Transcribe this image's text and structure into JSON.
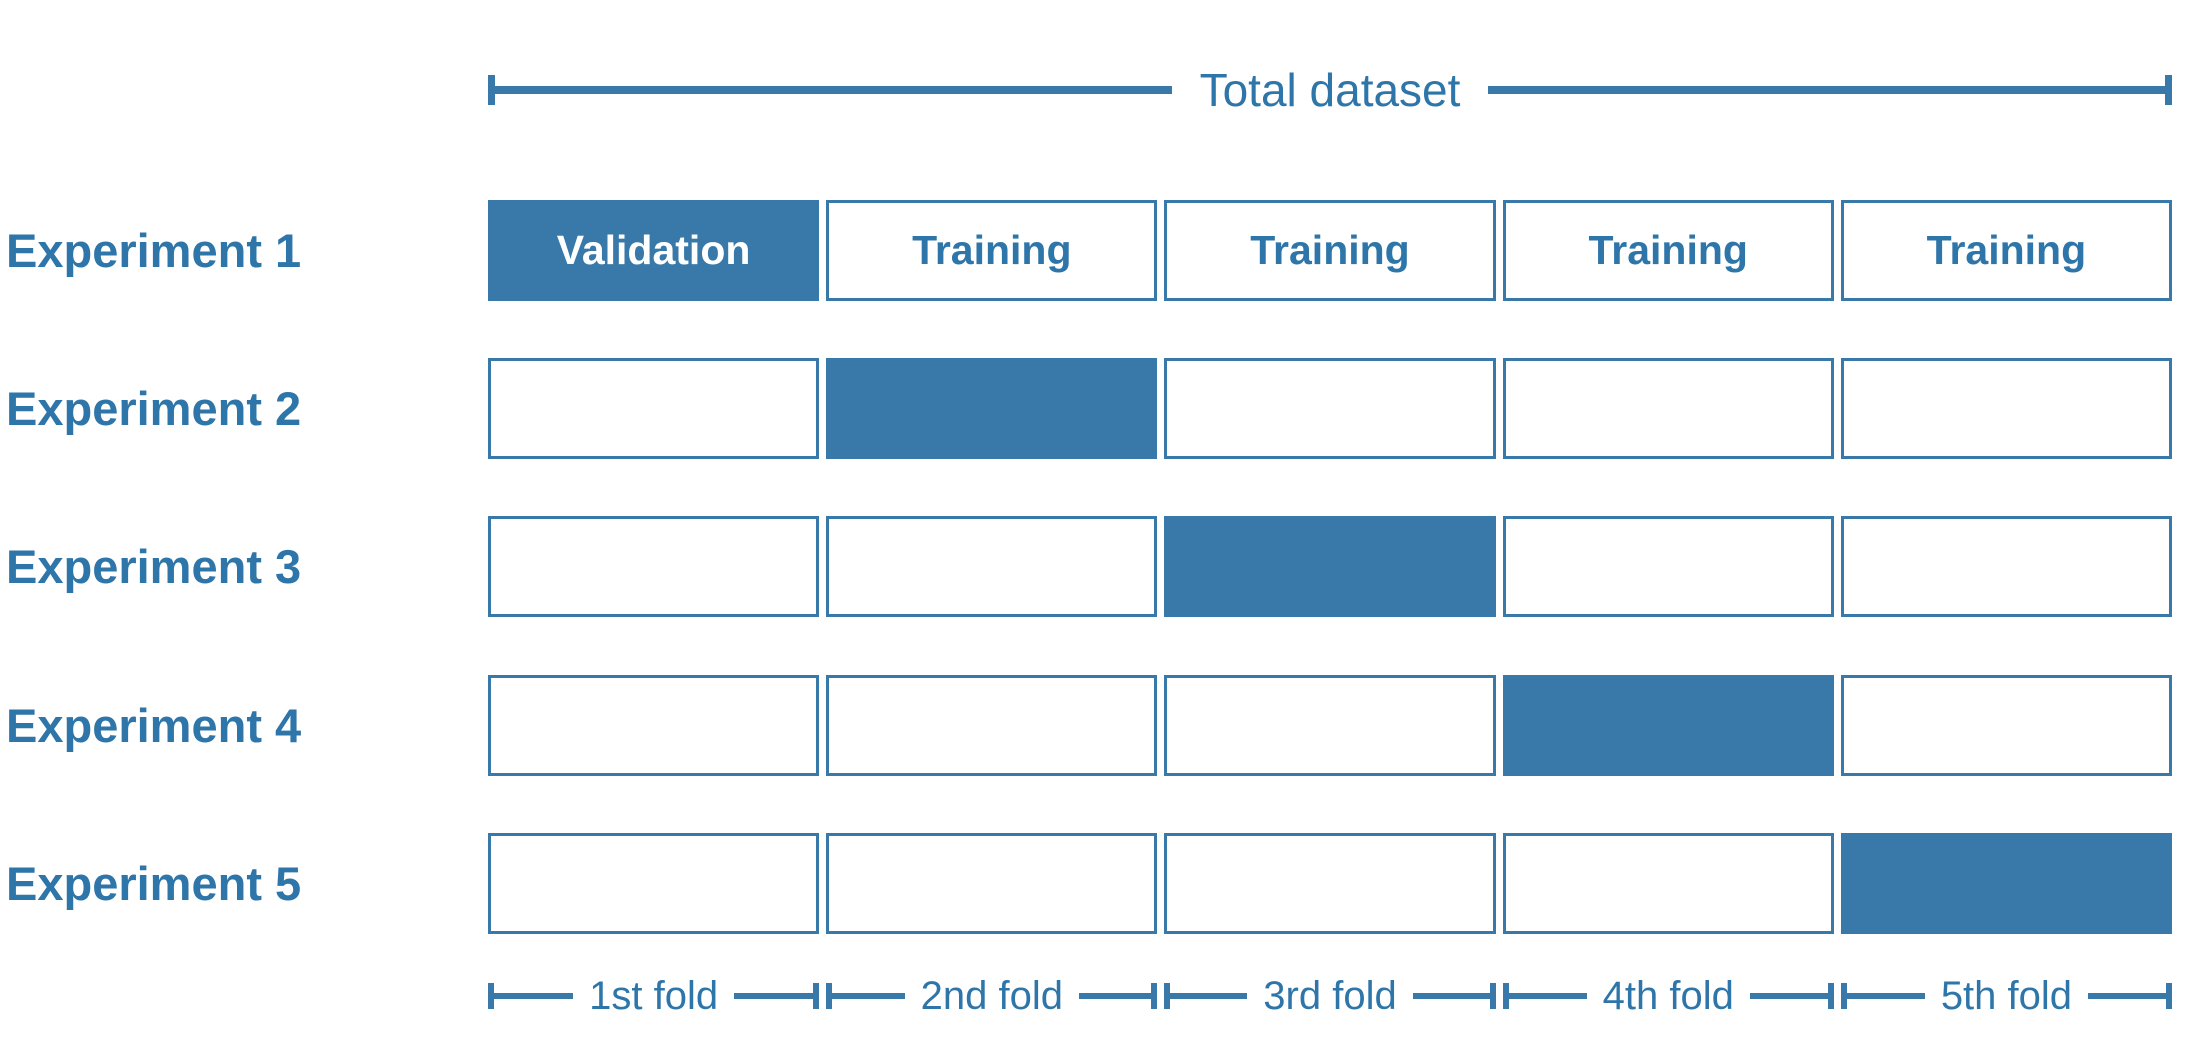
{
  "colors": {
    "fill_blue": "#3879A9",
    "line_blue": "#3879A9",
    "text_blue": "#2E76A9",
    "background": "#FFFFFF"
  },
  "total_dataset": {
    "label": "Total dataset"
  },
  "experiments": [
    {
      "label": "Experiment 1",
      "cells": [
        {
          "state": "filled",
          "text": "Validation"
        },
        {
          "state": "outlined",
          "text": "Training"
        },
        {
          "state": "outlined",
          "text": "Training"
        },
        {
          "state": "outlined",
          "text": "Training"
        },
        {
          "state": "outlined",
          "text": "Training"
        }
      ]
    },
    {
      "label": "Experiment 2",
      "cells": [
        {
          "state": "outlined",
          "text": ""
        },
        {
          "state": "filled",
          "text": ""
        },
        {
          "state": "outlined",
          "text": ""
        },
        {
          "state": "outlined",
          "text": ""
        },
        {
          "state": "outlined",
          "text": ""
        }
      ]
    },
    {
      "label": "Experiment 3",
      "cells": [
        {
          "state": "outlined",
          "text": ""
        },
        {
          "state": "outlined",
          "text": ""
        },
        {
          "state": "filled",
          "text": ""
        },
        {
          "state": "outlined",
          "text": ""
        },
        {
          "state": "outlined",
          "text": ""
        }
      ]
    },
    {
      "label": "Experiment 4",
      "cells": [
        {
          "state": "outlined",
          "text": ""
        },
        {
          "state": "outlined",
          "text": ""
        },
        {
          "state": "outlined",
          "text": ""
        },
        {
          "state": "filled",
          "text": ""
        },
        {
          "state": "outlined",
          "text": ""
        }
      ]
    },
    {
      "label": "Experiment 5",
      "cells": [
        {
          "state": "outlined",
          "text": ""
        },
        {
          "state": "outlined",
          "text": ""
        },
        {
          "state": "outlined",
          "text": ""
        },
        {
          "state": "outlined",
          "text": ""
        },
        {
          "state": "filled",
          "text": ""
        }
      ]
    }
  ],
  "folds": [
    {
      "label": "1st fold"
    },
    {
      "label": "2nd fold"
    },
    {
      "label": "3rd fold"
    },
    {
      "label": "4th fold"
    },
    {
      "label": "5th fold"
    }
  ]
}
